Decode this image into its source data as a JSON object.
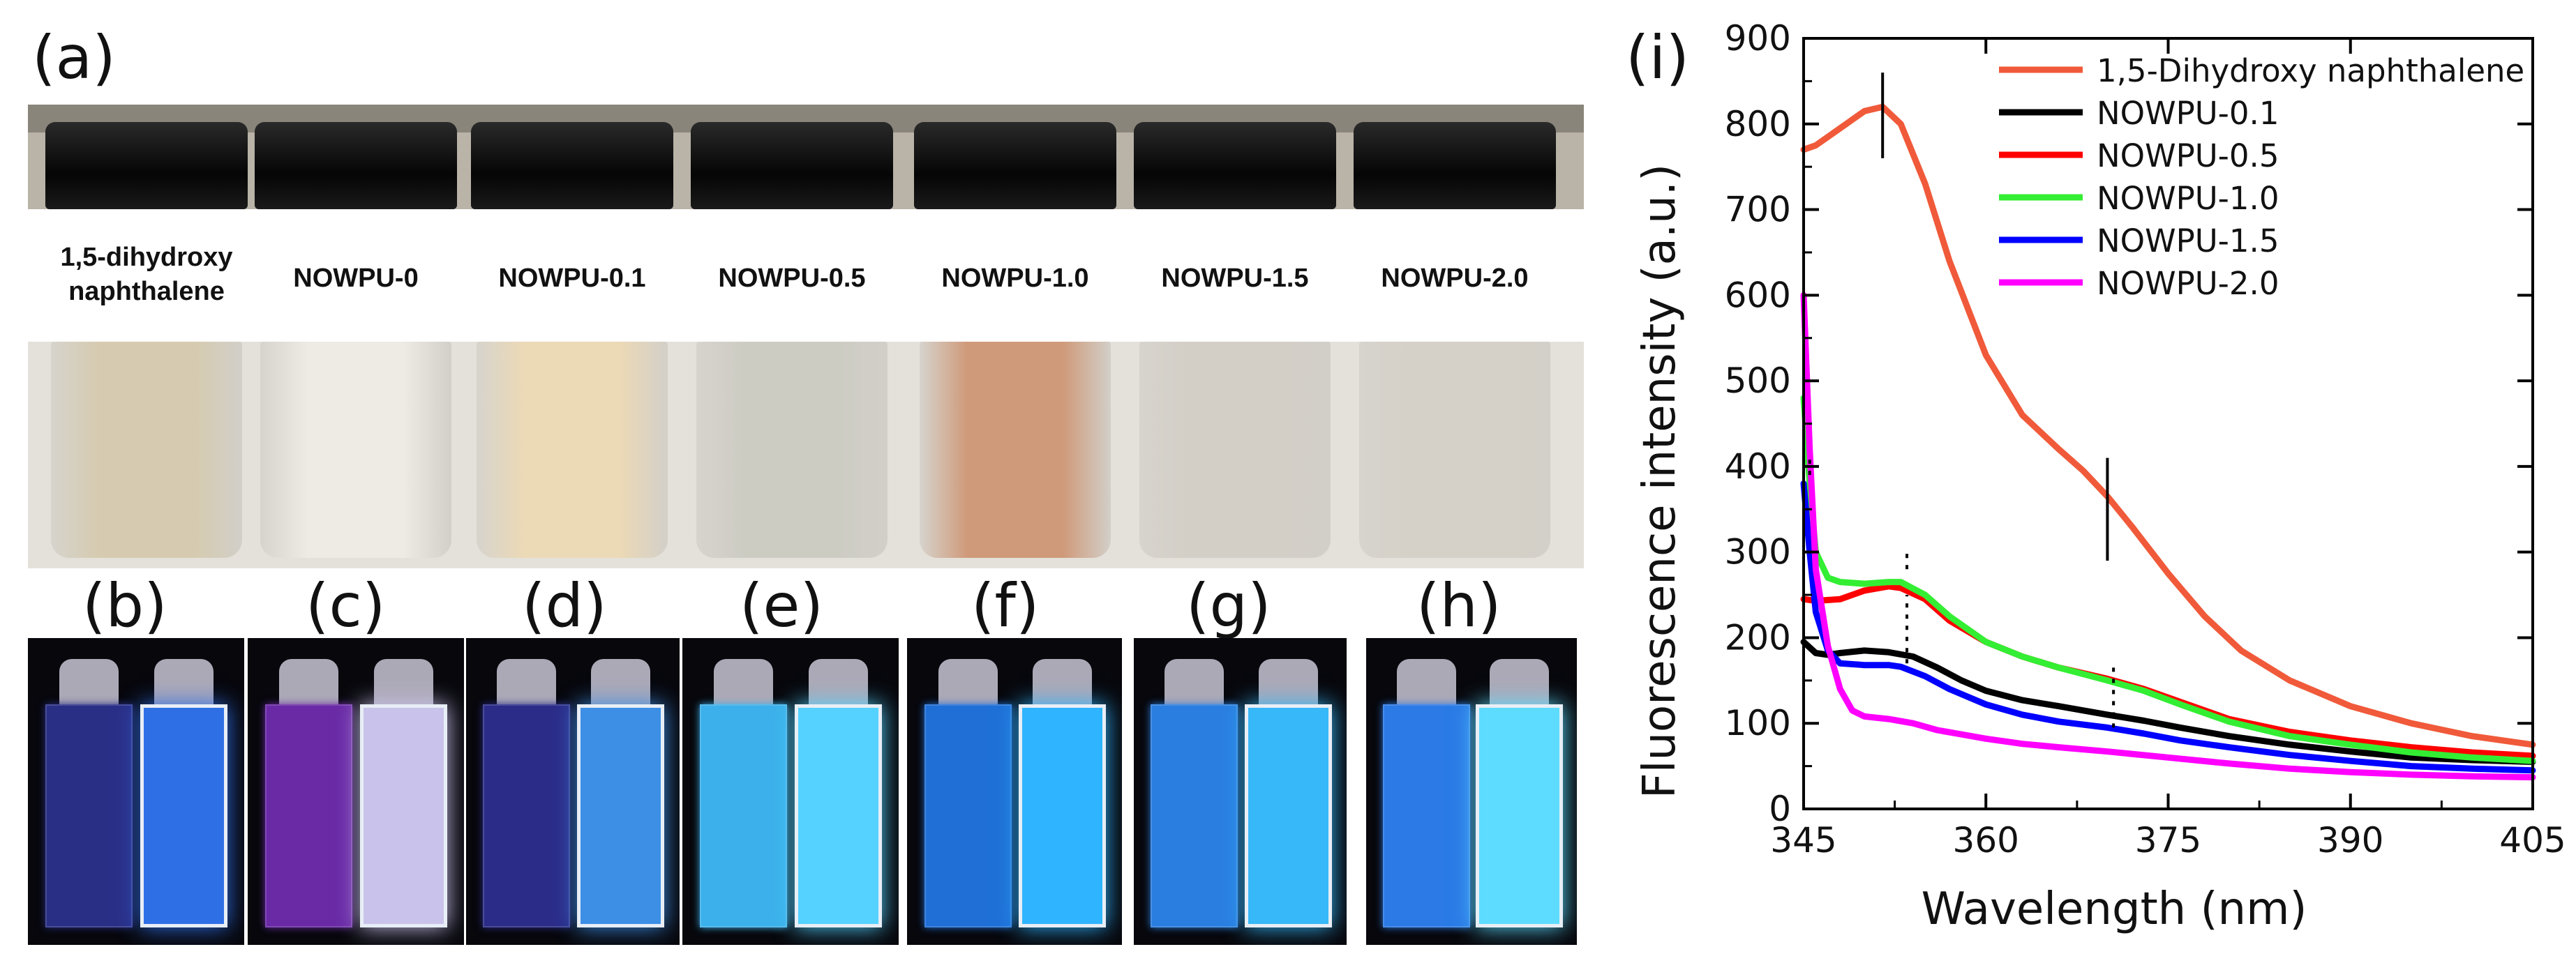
{
  "panels": {
    "a": "(a)",
    "b": "(b)",
    "c": "(c)",
    "d": "(d)",
    "e": "(e)",
    "f": "(f)",
    "g": "(g)",
    "h": "(h)",
    "i": "(i)"
  },
  "vials": [
    {
      "label_line1": "1,5-dihydroxy",
      "label_line2": "naphthalene",
      "color": "#d6cbb0"
    },
    {
      "label_line1": "NOWPU-0",
      "label_line2": "",
      "color": "#eeeae4"
    },
    {
      "label_line1": "NOWPU-0.1",
      "label_line2": "",
      "color": "#ecd9b6"
    },
    {
      "label_line1": "NOWPU-0.5",
      "label_line2": "",
      "color": "#cdccc3"
    },
    {
      "label_line1": "NOWPU-1.0",
      "label_line2": "",
      "color": "#cf9a7a"
    },
    {
      "label_line1": "NOWPU-1.5",
      "label_line2": "",
      "color": "#d3cfc7"
    },
    {
      "label_line1": "NOWPU-2.0",
      "label_line2": "",
      "color": "#d6d1c8"
    }
  ],
  "cuvettes": [
    {
      "left": "#2a2f86",
      "right": "#2f6fe6"
    },
    {
      "left": "#6a2aa6",
      "right": "#c9c2ea"
    },
    {
      "left": "#2b2c88",
      "right": "#3d8fe6"
    },
    {
      "left": "#3cb0ea",
      "right": "#55d2ff"
    },
    {
      "left": "#1f6fd6",
      "right": "#2fb4ff"
    },
    {
      "left": "#2a7ee0",
      "right": "#37b8f8"
    },
    {
      "left": "#2b7ae6",
      "right": "#5ddcff"
    }
  ],
  "chart_data": {
    "type": "line",
    "xlabel": "Wavelength (nm)",
    "ylabel": "Fluorescence intensity (a.u.)",
    "xlim": [
      345,
      405
    ],
    "ylim": [
      0,
      900
    ],
    "xticks": [
      345,
      360,
      375,
      390,
      405
    ],
    "yticks": [
      0,
      100,
      200,
      300,
      400,
      500,
      600,
      700,
      800,
      900
    ],
    "legend_position": "top-right",
    "series": [
      {
        "name": "1,5-Dihydroxy naphthalene",
        "color": "#f05a3a",
        "x": [
          345,
          346,
          348,
          350,
          351.5,
          353,
          355,
          357,
          360,
          363,
          366,
          368,
          370,
          372,
          375,
          378,
          381,
          385,
          390,
          395,
          400,
          405
        ],
        "y": [
          770,
          775,
          795,
          815,
          820,
          800,
          730,
          640,
          530,
          460,
          420,
          395,
          365,
          330,
          275,
          225,
          185,
          150,
          120,
          100,
          85,
          75
        ]
      },
      {
        "name": "NOWPU-0.1",
        "color": "#000000",
        "x": [
          345,
          346,
          347,
          348,
          350,
          352,
          354,
          356,
          358,
          360,
          363,
          366,
          370,
          373,
          376,
          380,
          385,
          390,
          395,
          400,
          405
        ],
        "y": [
          195,
          182,
          180,
          182,
          185,
          183,
          178,
          165,
          150,
          138,
          127,
          120,
          110,
          103,
          95,
          85,
          75,
          67,
          60,
          57,
          55
        ]
      },
      {
        "name": "NOWPU-0.5",
        "color": "#ff0000",
        "x": [
          345,
          346,
          348,
          350,
          352,
          353,
          355,
          357,
          360,
          363,
          366,
          370,
          373,
          376,
          380,
          385,
          390,
          395,
          400,
          405
        ],
        "y": [
          245,
          243,
          245,
          255,
          260,
          258,
          245,
          220,
          195,
          178,
          165,
          152,
          140,
          125,
          105,
          90,
          80,
          72,
          66,
          62
        ]
      },
      {
        "name": "NOWPU-1.0",
        "color": "#33ee33",
        "x": [
          345,
          345.5,
          346,
          347,
          348,
          350,
          352,
          353,
          355,
          357,
          360,
          363,
          366,
          370,
          373,
          376,
          380,
          385,
          390,
          395,
          400,
          405
        ],
        "y": [
          480,
          380,
          300,
          270,
          265,
          263,
          265,
          265,
          250,
          225,
          195,
          178,
          165,
          150,
          138,
          122,
          102,
          85,
          75,
          66,
          60,
          56
        ]
      },
      {
        "name": "NOWPU-1.5",
        "color": "#0000ff",
        "x": [
          345,
          345.5,
          346,
          347,
          348,
          350,
          352,
          353,
          355,
          357,
          360,
          363,
          366,
          370,
          373,
          376,
          380,
          385,
          390,
          395,
          400,
          405
        ],
        "y": [
          380,
          300,
          230,
          185,
          170,
          168,
          168,
          166,
          155,
          140,
          122,
          110,
          102,
          95,
          88,
          80,
          72,
          63,
          56,
          50,
          47,
          45
        ]
      },
      {
        "name": "NOWPU-2.0",
        "color": "#ff00ff",
        "x": [
          345,
          345.5,
          346,
          347,
          348,
          349,
          350,
          352,
          354,
          356,
          360,
          363,
          366,
          370,
          375,
          380,
          385,
          390,
          395,
          400,
          405
        ],
        "y": [
          600,
          420,
          280,
          190,
          140,
          115,
          108,
          105,
          100,
          92,
          82,
          76,
          72,
          67,
          60,
          53,
          47,
          43,
          40,
          38,
          37
        ]
      }
    ],
    "annotations": [
      {
        "x": 351.5,
        "y_from": 760,
        "y_to": 860,
        "style": "solid"
      },
      {
        "x": 370,
        "y_from": 290,
        "y_to": 410,
        "style": "solid"
      },
      {
        "x": 353.5,
        "y_from": 170,
        "y_to": 250,
        "style": "dotted"
      },
      {
        "x": 353.5,
        "y_from": 280,
        "y_to": 300,
        "style": "dotted"
      },
      {
        "x": 370.5,
        "y_from": 95,
        "y_to": 165,
        "style": "dotted"
      },
      {
        "x": 345.5,
        "y_from": 390,
        "y_to": 410,
        "style": "dotted"
      }
    ]
  }
}
